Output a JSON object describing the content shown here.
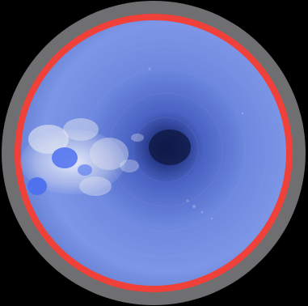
{
  "scene": {
    "colors": {
      "background": "#000000",
      "outer_ring": "#6f6f71",
      "red_band": "#f0403a",
      "tube_wall": "#6f88dd",
      "tube_wall_dark": "#2a3a8e",
      "center_hole": "#15204f",
      "debris": "#d9dde8",
      "debris_blue": "#4d70ee"
    },
    "icon": "pipe-interior-camera-view"
  },
  "overlay": {
    "line1": "",
    "line2": "",
    "line3": ""
  }
}
